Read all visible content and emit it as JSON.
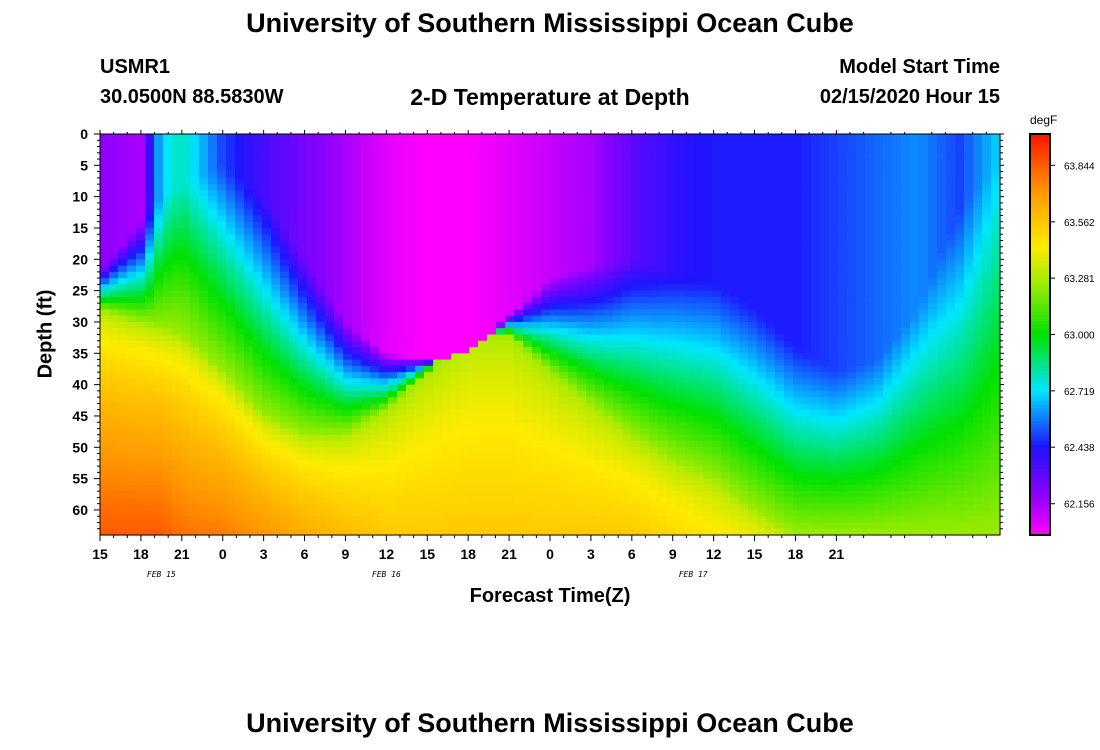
{
  "header": {
    "title": "University of Southern Mississippi Ocean Cube",
    "station": "USMR1",
    "coordinates": "30.0500N 88.5830W",
    "plot_title": "2-D Temperature at Depth",
    "model_start_label": "Model Start Time",
    "model_start_value": "02/15/2020 Hour 15"
  },
  "footer": {
    "title": "University of Southern Mississippi Ocean Cube"
  },
  "chart_data": {
    "type": "heatmap",
    "title": "2-D Temperature at Depth",
    "xlabel": "Forecast Time(Z)",
    "ylabel": "Depth (ft)",
    "unit": "degF",
    "x_hours": [
      0,
      66
    ],
    "x_tick_labels": [
      "15",
      "18",
      "21",
      "0",
      "3",
      "6",
      "9",
      "12",
      "15",
      "18",
      "21",
      "0",
      "3",
      "6",
      "9",
      "12",
      "15",
      "18",
      "21"
    ],
    "date_labels": [
      {
        "label": "FEB 15",
        "hour": 4.5
      },
      {
        "label": "FEB 16",
        "hour": 21
      },
      {
        "label": "FEB 17",
        "hour": 43.5
      }
    ],
    "ylim": [
      0,
      64
    ],
    "y_ticks": [
      0,
      5,
      10,
      15,
      20,
      25,
      30,
      35,
      40,
      45,
      50,
      55,
      60
    ],
    "color_scale": {
      "min": 62.0,
      "max": 64.0,
      "tick_values": [
        62.156,
        62.438,
        62.719,
        63.0,
        63.281,
        63.562,
        63.844
      ],
      "tick_labels": [
        "62.156",
        "62.438",
        "62.719",
        "63.000",
        "63.281",
        "63.562",
        "63.844"
      ]
    },
    "field_profiles": {
      "hours": [
        0,
        3,
        4.5,
        6,
        9,
        12,
        15,
        18,
        21,
        24,
        27,
        30,
        33,
        36,
        39,
        42,
        45,
        48,
        51,
        54,
        57,
        60,
        63,
        66
      ],
      "warm_depth_ft": [
        28,
        30,
        31,
        32,
        38,
        45,
        48,
        48,
        44,
        38,
        32,
        32,
        38,
        43,
        48,
        52,
        55,
        60,
        64,
        64,
        64,
        64,
        64,
        64
      ],
      "cold_depth_ft": [
        22,
        14,
        10,
        8,
        5,
        10,
        20,
        30,
        35,
        36,
        35,
        29,
        23,
        21,
        20,
        22,
        24,
        28,
        34,
        38,
        36,
        28,
        12,
        4
      ],
      "surface_temp": [
        62.2,
        62.15,
        62.7,
        62.8,
        62.5,
        62.35,
        62.25,
        62.15,
        62.05,
        62.0,
        62.0,
        62.05,
        62.1,
        62.15,
        62.3,
        62.4,
        62.45,
        62.45,
        62.45,
        62.5,
        62.55,
        62.6,
        62.5,
        62.7
      ],
      "bottom_temp": [
        63.85,
        63.85,
        63.85,
        63.8,
        63.78,
        63.72,
        63.65,
        63.6,
        63.55,
        63.55,
        63.55,
        63.55,
        63.55,
        63.55,
        63.55,
        63.5,
        63.45,
        63.4,
        63.3,
        63.25,
        63.2,
        63.2,
        63.2,
        63.2
      ],
      "warm_layer_temp": 63.25
    }
  }
}
